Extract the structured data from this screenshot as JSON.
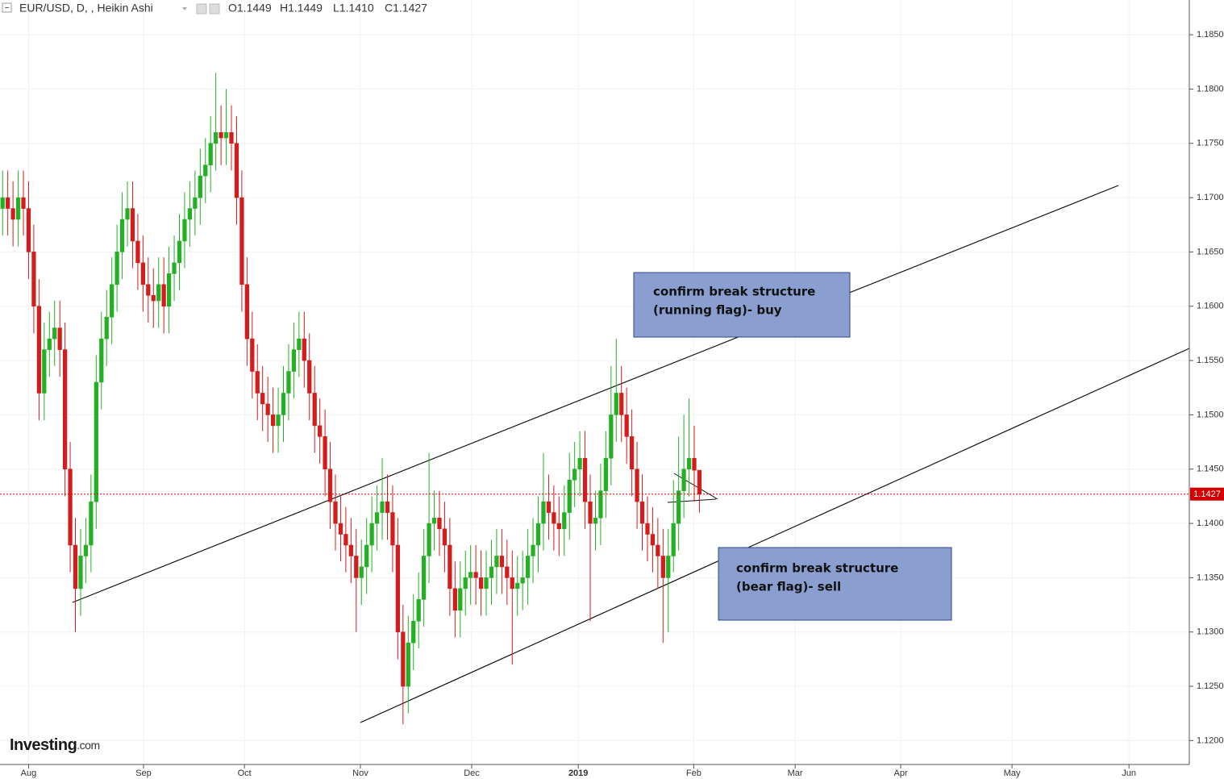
{
  "chart_data": {
    "type": "candlestick",
    "header": {
      "symbol": "EUR/USD, D, , Heikin Ashi",
      "ohlc": [
        "O1.1449",
        "H1.1449",
        "L1.1410",
        "C1.1427"
      ]
    },
    "logo": [
      "Investing",
      ".com"
    ],
    "annotations": [
      [
        "confirm break structure",
        "(running flag)- buy"
      ],
      [
        "confirm break structure",
        "(bear flag)- sell"
      ]
    ],
    "up_color": "#24b024",
    "down_color": "#d41c1c",
    "last_price_color": "#d40000",
    "grid": true,
    "xlim": [
      -0.5,
      228.2
    ],
    "xticks": [
      {
        "value": 5,
        "label": "Aug"
      },
      {
        "value": 27.1,
        "label": "Sep"
      },
      {
        "value": 46.5,
        "label": "Oct"
      },
      {
        "value": 68.8,
        "label": "Nov"
      },
      {
        "value": 90.2,
        "label": "Dec"
      },
      {
        "value": 110.7,
        "label": "2019"
      },
      {
        "value": 132.9,
        "label": "Feb"
      },
      {
        "value": 152.4,
        "label": "Mar"
      },
      {
        "value": 172.7,
        "label": "Apr"
      },
      {
        "value": 194.1,
        "label": "May"
      },
      {
        "value": 216.6,
        "label": "Jun"
      }
    ],
    "ylim": [
      1.1178,
      1.1882
    ],
    "yticks": [
      {
        "value": 1.12,
        "label": "1.1200"
      },
      {
        "value": 1.125,
        "label": "1.1250"
      },
      {
        "value": 1.13,
        "label": "1.1300"
      },
      {
        "value": 1.135,
        "label": "1.1350"
      },
      {
        "value": 1.14,
        "label": "1.1400"
      },
      {
        "value": 1.145,
        "label": "1.1450"
      },
      {
        "value": 1.15,
        "label": "1.1500"
      },
      {
        "value": 1.155,
        "label": "1.1550"
      },
      {
        "value": 1.16,
        "label": "1.1600"
      },
      {
        "value": 1.165,
        "label": "1.1650"
      },
      {
        "value": 1.17,
        "label": "1.1700"
      },
      {
        "value": 1.175,
        "label": "1.1750"
      },
      {
        "value": 1.18,
        "label": "1.1800"
      },
      {
        "value": 1.185,
        "label": "1.1850"
      }
    ],
    "open": [
      1.169,
      1.17,
      1.169,
      1.168,
      1.17,
      1.169,
      1.165,
      1.16,
      1.152,
      1.156,
      1.157,
      1.158,
      1.156,
      1.145,
      1.138,
      1.134,
      1.137,
      1.138,
      1.142,
      1.153,
      1.157,
      1.159,
      1.162,
      1.165,
      1.168,
      1.169,
      1.166,
      1.164,
      1.162,
      1.161,
      1.1605,
      1.162,
      1.16,
      1.163,
      1.164,
      1.166,
      1.168,
      1.169,
      1.17,
      1.172,
      1.173,
      1.175,
      1.176,
      1.1755,
      1.176,
      1.175,
      1.17,
      1.162,
      1.157,
      1.154,
      1.152,
      1.151,
      1.15,
      1.149,
      1.15,
      1.152,
      1.154,
      1.156,
      1.157,
      1.155,
      1.152,
      1.149,
      1.148,
      1.145,
      1.142,
      1.14,
      1.139,
      1.138,
      1.137,
      1.135,
      1.136,
      1.138,
      1.14,
      1.141,
      1.142,
      1.141,
      1.138,
      1.13,
      1.125,
      1.129,
      1.131,
      1.133,
      1.137,
      1.14,
      1.1405,
      1.1395,
      1.138,
      1.134,
      1.132,
      1.134,
      1.135,
      1.1355,
      1.135,
      1.134,
      1.135,
      1.136,
      1.137,
      1.136,
      1.135,
      1.134,
      1.1345,
      1.135,
      1.137,
      1.138,
      1.14,
      1.142,
      1.141,
      1.14,
      1.1395,
      1.141,
      1.144,
      1.145,
      1.146,
      1.142,
      1.14,
      1.1405,
      1.143,
      1.146,
      1.15,
      1.152,
      1.15,
      1.148,
      1.145,
      1.142,
      1.14,
      1.139,
      1.138,
      1.137,
      1.135,
      1.137,
      1.14,
      1.143,
      1.145,
      1.146,
      1.1449
    ],
    "high": [
      1.1725,
      1.1725,
      1.1715,
      1.1725,
      1.1725,
      1.1715,
      1.1675,
      1.1625,
      1.1585,
      1.1595,
      1.1605,
      1.1605,
      1.1585,
      1.1475,
      1.1405,
      1.1395,
      1.1405,
      1.1445,
      1.1555,
      1.1595,
      1.1615,
      1.1645,
      1.1675,
      1.1705,
      1.1715,
      1.1715,
      1.1685,
      1.1665,
      1.1645,
      1.1635,
      1.1645,
      1.1645,
      1.1655,
      1.1665,
      1.1685,
      1.1705,
      1.1715,
      1.1725,
      1.1745,
      1.1755,
      1.1775,
      1.1815,
      1.1785,
      1.18,
      1.1785,
      1.1775,
      1.1725,
      1.1645,
      1.1595,
      1.1565,
      1.1545,
      1.1535,
      1.1525,
      1.1525,
      1.1545,
      1.1565,
      1.1585,
      1.1595,
      1.1595,
      1.1575,
      1.1545,
      1.1515,
      1.1505,
      1.1475,
      1.1445,
      1.1425,
      1.1415,
      1.1405,
      1.1395,
      1.1385,
      1.1405,
      1.1425,
      1.1435,
      1.146,
      1.1445,
      1.1435,
      1.1405,
      1.1325,
      1.1315,
      1.1335,
      1.1355,
      1.1395,
      1.1465,
      1.143,
      1.143,
      1.142,
      1.1405,
      1.1365,
      1.1365,
      1.1375,
      1.138,
      1.138,
      1.1375,
      1.1375,
      1.1385,
      1.1395,
      1.1395,
      1.1385,
      1.1375,
      1.137,
      1.1375,
      1.1395,
      1.1405,
      1.1425,
      1.1465,
      1.1445,
      1.1435,
      1.1425,
      1.1435,
      1.1465,
      1.1475,
      1.1485,
      1.1485,
      1.1445,
      1.143,
      1.1455,
      1.1485,
      1.1545,
      1.157,
      1.1545,
      1.1525,
      1.1505,
      1.1475,
      1.1445,
      1.1425,
      1.1415,
      1.1405,
      1.1395,
      1.1395,
      1.144,
      1.148,
      1.15,
      1.1515,
      1.149,
      1.1449
    ],
    "low": [
      1.1665,
      1.1665,
      1.1655,
      1.1655,
      1.1665,
      1.1625,
      1.1575,
      1.1495,
      1.1495,
      1.1535,
      1.1545,
      1.1535,
      1.1425,
      1.1355,
      1.13,
      1.1315,
      1.1345,
      1.1355,
      1.1395,
      1.1505,
      1.1545,
      1.1565,
      1.1595,
      1.1625,
      1.1655,
      1.1635,
      1.1615,
      1.1595,
      1.1585,
      1.158,
      1.158,
      1.1575,
      1.1575,
      1.1605,
      1.1615,
      1.1635,
      1.1655,
      1.1665,
      1.1675,
      1.1695,
      1.1705,
      1.1725,
      1.173,
      1.173,
      1.1725,
      1.1675,
      1.1595,
      1.1545,
      1.1515,
      1.1495,
      1.1485,
      1.1475,
      1.1465,
      1.1465,
      1.1475,
      1.1495,
      1.1515,
      1.1535,
      1.1525,
      1.1495,
      1.1465,
      1.1455,
      1.1425,
      1.1395,
      1.1375,
      1.1365,
      1.1355,
      1.1345,
      1.13,
      1.1325,
      1.1335,
      1.1355,
      1.1375,
      1.1385,
      1.1385,
      1.1355,
      1.1275,
      1.1215,
      1.1225,
      1.1265,
      1.1285,
      1.1305,
      1.1345,
      1.1375,
      1.137,
      1.1355,
      1.1315,
      1.1295,
      1.1295,
      1.1315,
      1.1325,
      1.1325,
      1.1315,
      1.1315,
      1.1325,
      1.1335,
      1.1335,
      1.1325,
      1.127,
      1.1315,
      1.132,
      1.1325,
      1.1345,
      1.1355,
      1.1375,
      1.1385,
      1.1375,
      1.137,
      1.137,
      1.1385,
      1.1415,
      1.1425,
      1.1395,
      1.131,
      1.1375,
      1.138,
      1.1405,
      1.1435,
      1.1475,
      1.1475,
      1.1455,
      1.1425,
      1.1395,
      1.1375,
      1.1365,
      1.1355,
      1.134,
      1.129,
      1.13,
      1.1355,
      1.1375,
      1.1405,
      1.1425,
      1.142,
      1.141
    ],
    "close": [
      1.17,
      1.169,
      1.168,
      1.17,
      1.169,
      1.165,
      1.16,
      1.152,
      1.156,
      1.157,
      1.158,
      1.156,
      1.145,
      1.138,
      1.134,
      1.137,
      1.138,
      1.142,
      1.153,
      1.157,
      1.159,
      1.162,
      1.165,
      1.168,
      1.169,
      1.166,
      1.164,
      1.162,
      1.161,
      1.1605,
      1.162,
      1.16,
      1.163,
      1.164,
      1.166,
      1.168,
      1.169,
      1.17,
      1.172,
      1.173,
      1.175,
      1.176,
      1.1755,
      1.176,
      1.175,
      1.17,
      1.162,
      1.157,
      1.154,
      1.152,
      1.151,
      1.15,
      1.149,
      1.15,
      1.152,
      1.154,
      1.156,
      1.157,
      1.155,
      1.152,
      1.149,
      1.148,
      1.145,
      1.142,
      1.14,
      1.139,
      1.138,
      1.137,
      1.135,
      1.136,
      1.138,
      1.14,
      1.141,
      1.142,
      1.141,
      1.138,
      1.13,
      1.125,
      1.129,
      1.131,
      1.133,
      1.137,
      1.14,
      1.1405,
      1.1395,
      1.138,
      1.134,
      1.132,
      1.134,
      1.135,
      1.1355,
      1.135,
      1.134,
      1.135,
      1.136,
      1.137,
      1.136,
      1.135,
      1.134,
      1.1345,
      1.135,
      1.137,
      1.138,
      1.14,
      1.142,
      1.141,
      1.14,
      1.1395,
      1.141,
      1.144,
      1.145,
      1.146,
      1.142,
      1.14,
      1.1405,
      1.143,
      1.146,
      1.15,
      1.152,
      1.15,
      1.148,
      1.145,
      1.142,
      1.14,
      1.139,
      1.138,
      1.137,
      1.135,
      1.137,
      1.14,
      1.143,
      1.145,
      1.146,
      1.1449,
      1.1427
    ]
  }
}
